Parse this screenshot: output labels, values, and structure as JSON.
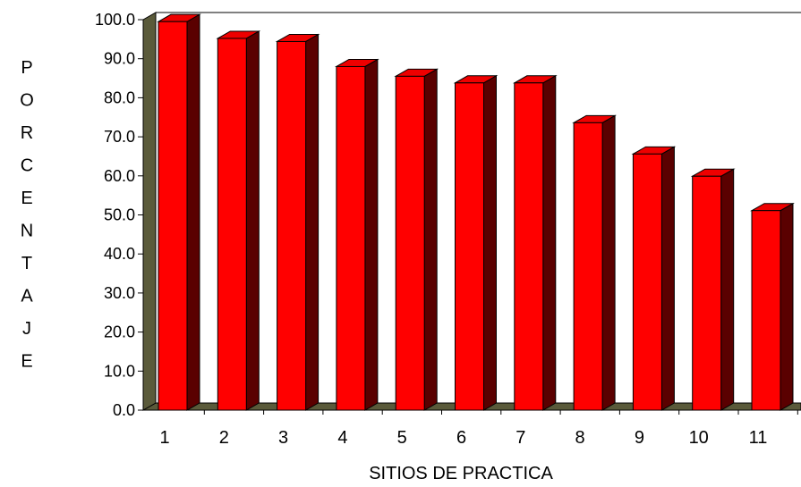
{
  "chart_data": {
    "type": "bar",
    "title": "",
    "xlabel": "SITIOS DE PRACTICA",
    "ylabel": "PORCENTAJE",
    "categories": [
      "1",
      "2",
      "3",
      "4",
      "5",
      "6",
      "7",
      "8",
      "9",
      "10",
      "11"
    ],
    "values": [
      99.5,
      95.2,
      94.4,
      88.0,
      85.5,
      83.8,
      83.8,
      73.6,
      65.6,
      59.9,
      51.1
    ],
    "ylim": [
      0,
      100
    ],
    "yticks": [
      "0.0",
      "10.0",
      "20.0",
      "30.0",
      "40.0",
      "50.0",
      "60.0",
      "70.0",
      "80.0",
      "90.0",
      "100.0"
    ],
    "grid": false,
    "legend": "none",
    "three_d": true,
    "colors": {
      "bar_front": "#ff0000",
      "bar_side": "#5a0000",
      "bar_top": "#ee0000",
      "floor": "#5a5a3a",
      "back_wall": "#ffffff",
      "axis": "#000000"
    }
  }
}
